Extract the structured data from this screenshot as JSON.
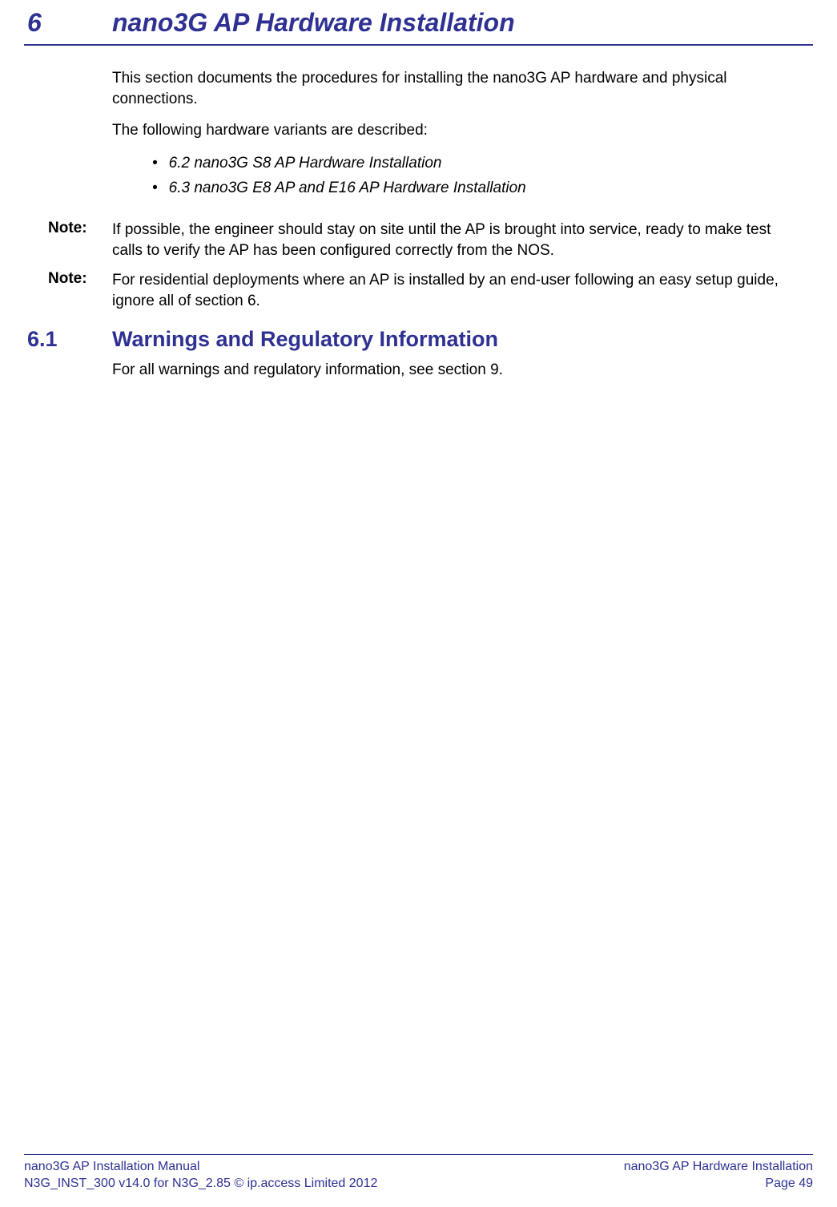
{
  "chapter": {
    "number": "6",
    "title": "nano3G AP Hardware Installation"
  },
  "intro": {
    "para1": "This section documents the procedures for installing the nano3G AP hardware and physical connections.",
    "para2": "The following hardware variants are described:",
    "bullets": [
      "6.2 nano3G S8 AP Hardware Installation",
      "6.3 nano3G E8 AP and E16 AP Hardware Installation"
    ]
  },
  "notes": [
    {
      "label": "Note:",
      "text": "If possible, the engineer should stay on site until the AP is brought into service, ready to make test calls to verify the AP has been configured correctly from the NOS."
    },
    {
      "label": "Note:",
      "text": "For residential deployments where an AP is installed by an end-user following an easy setup guide, ignore all of section 6."
    }
  ],
  "section": {
    "number": "6.1",
    "title": "Warnings and Regulatory Information",
    "body": "For all warnings and regulatory information, see section 9."
  },
  "footer": {
    "left_line1": "nano3G AP Installation Manual",
    "left_line2": "N3G_INST_300 v14.0 for N3G_2.85 © ip.access Limited 2012",
    "right_line1": "nano3G AP Hardware Installation",
    "right_line2": "Page 49"
  },
  "colors": {
    "heading": "#2e3192",
    "rule": "#2e3192",
    "body": "#000000",
    "background": "#ffffff"
  },
  "typography": {
    "chapter_fontsize": 32,
    "section_fontsize": 27,
    "body_fontsize": 19,
    "footer_fontsize": 16
  }
}
